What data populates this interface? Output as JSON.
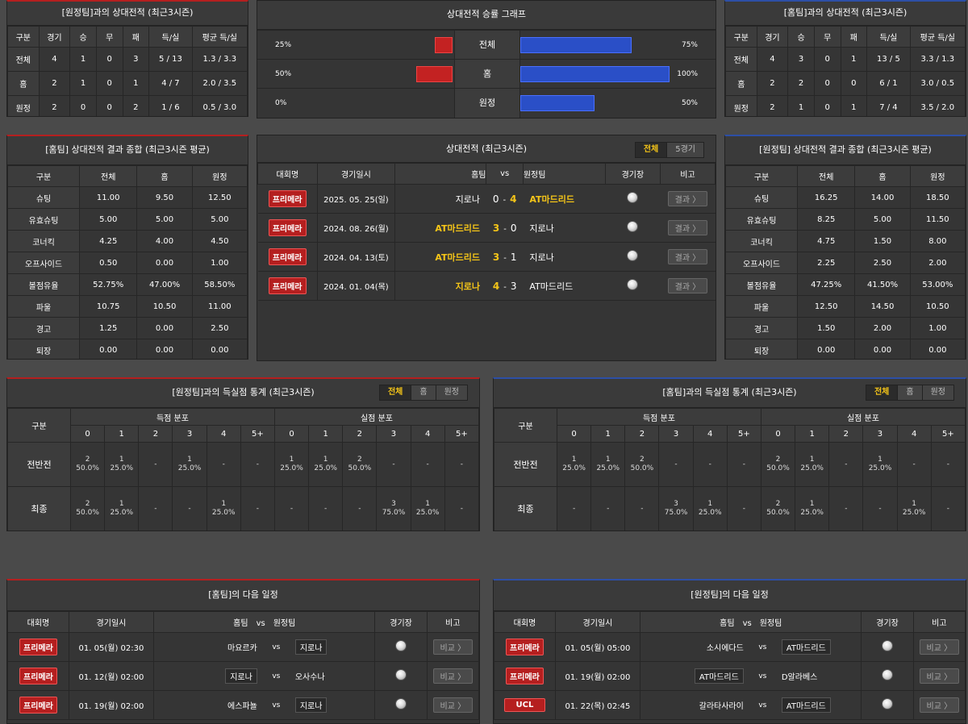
{
  "away_h2h": {
    "title": "[원정팀]과의 상대전적 (최근3시즌)",
    "headers": [
      "구분",
      "경기",
      "승",
      "무",
      "패",
      "득/실",
      "평균 득/실"
    ],
    "rows": [
      [
        "전체",
        "4",
        "1",
        "0",
        "3",
        "5 / 13",
        "1.3 / 3.3"
      ],
      [
        "홈",
        "2",
        "1",
        "0",
        "1",
        "4 / 7",
        "2.0 / 3.5"
      ],
      [
        "원정",
        "2",
        "0",
        "0",
        "2",
        "1 / 6",
        "0.5 / 3.0"
      ]
    ]
  },
  "graph": {
    "title": "상대전적 승률 그래프",
    "rows": [
      {
        "label": "전체",
        "left_pct": "25%",
        "right_pct": "75%",
        "left": 25,
        "right": 75
      },
      {
        "label": "홈",
        "left_pct": "50%",
        "right_pct": "100%",
        "left": 50,
        "right": 100
      },
      {
        "label": "원정",
        "left_pct": "0%",
        "right_pct": "50%",
        "left": 0,
        "right": 50
      }
    ]
  },
  "home_h2h": {
    "title": "[홈팀]과의 상대전적 (최근3시즌)",
    "headers": [
      "구분",
      "경기",
      "승",
      "무",
      "패",
      "득/실",
      "평균 득/실"
    ],
    "rows": [
      [
        "전체",
        "4",
        "3",
        "0",
        "1",
        "13 / 5",
        "3.3 / 1.3"
      ],
      [
        "홈",
        "2",
        "2",
        "0",
        "0",
        "6 / 1",
        "3.0 / 0.5"
      ],
      [
        "원정",
        "2",
        "1",
        "0",
        "1",
        "7 / 4",
        "3.5 / 2.0"
      ]
    ]
  },
  "home_stats": {
    "title": "[홈팀] 상대전적 결과 종합 (최근3시즌 평균)",
    "headers": [
      "구분",
      "전체",
      "홈",
      "원정"
    ],
    "rows": [
      [
        "슈팅",
        "11.00",
        "9.50",
        "12.50"
      ],
      [
        "유효슈팅",
        "5.00",
        "5.00",
        "5.00"
      ],
      [
        "코너킥",
        "4.25",
        "4.00",
        "4.50"
      ],
      [
        "오프사이드",
        "0.50",
        "0.00",
        "1.00"
      ],
      [
        "볼점유율",
        "52.75%",
        "47.00%",
        "58.50%"
      ],
      [
        "파울",
        "10.75",
        "10.50",
        "11.00"
      ],
      [
        "경고",
        "1.25",
        "0.00",
        "2.50"
      ],
      [
        "퇴장",
        "0.00",
        "0.00",
        "0.00"
      ]
    ]
  },
  "matches": {
    "title": "상대전적 (최근3시즌)",
    "tabs": [
      "전체",
      "5경기"
    ],
    "headers": {
      "league": "대회명",
      "date": "경기일시",
      "home": "홈팀",
      "vs": "vs",
      "away": "원정팀",
      "stadium": "경기장",
      "note": "비고"
    },
    "button": "결과 〉",
    "rows": [
      {
        "league": "프리메라",
        "date": "2025. 05. 25(일)",
        "home": "지로나",
        "hs": "0",
        "sep": "-",
        "as": "4",
        "away": "AT마드리드",
        "win": "away"
      },
      {
        "league": "프리메라",
        "date": "2024. 08. 26(월)",
        "home": "AT마드리드",
        "hs": "3",
        "sep": "-",
        "as": "0",
        "away": "지로나",
        "win": "home"
      },
      {
        "league": "프리메라",
        "date": "2024. 04. 13(토)",
        "home": "AT마드리드",
        "hs": "3",
        "sep": "-",
        "as": "1",
        "away": "지로나",
        "win": "home"
      },
      {
        "league": "프리메라",
        "date": "2024. 01. 04(목)",
        "home": "지로나",
        "hs": "4",
        "sep": "-",
        "as": "3",
        "away": "AT마드리드",
        "win": "home"
      }
    ]
  },
  "away_stats": {
    "title": "[원정팀] 상대전적 결과 종합 (최근3시즌 평균)",
    "headers": [
      "구분",
      "전체",
      "홈",
      "원정"
    ],
    "rows": [
      [
        "슈팅",
        "16.25",
        "14.00",
        "18.50"
      ],
      [
        "유효슈팅",
        "8.25",
        "5.00",
        "11.50"
      ],
      [
        "코너킥",
        "4.75",
        "1.50",
        "8.00"
      ],
      [
        "오프사이드",
        "2.25",
        "2.50",
        "2.00"
      ],
      [
        "볼점유율",
        "47.25%",
        "41.50%",
        "53.00%"
      ],
      [
        "파울",
        "12.50",
        "14.50",
        "10.50"
      ],
      [
        "경고",
        "1.50",
        "2.00",
        "1.00"
      ],
      [
        "퇴장",
        "0.00",
        "0.00",
        "0.00"
      ]
    ]
  },
  "away_goals": {
    "title": "[원정팀]과의 득실점 통계 (최근3시즌)",
    "tabs": [
      "전체",
      "홈",
      "원정"
    ],
    "col0": "구분",
    "group1": "득점 분포",
    "group2": "실점 분포",
    "cols": [
      "0",
      "1",
      "2",
      "3",
      "4",
      "5+"
    ],
    "rows": [
      {
        "label": "전반전",
        "cells": [
          [
            "2",
            "50.0%"
          ],
          [
            "1",
            "25.0%"
          ],
          [
            "-",
            ""
          ],
          [
            "1",
            "25.0%"
          ],
          [
            "-",
            ""
          ],
          [
            "-",
            ""
          ],
          [
            "1",
            "25.0%"
          ],
          [
            "1",
            "25.0%"
          ],
          [
            "2",
            "50.0%"
          ],
          [
            "-",
            ""
          ],
          [
            "-",
            ""
          ],
          [
            "-",
            ""
          ]
        ]
      },
      {
        "label": "최종",
        "cells": [
          [
            "2",
            "50.0%"
          ],
          [
            "1",
            "25.0%"
          ],
          [
            "-",
            ""
          ],
          [
            "-",
            ""
          ],
          [
            "1",
            "25.0%"
          ],
          [
            "-",
            ""
          ],
          [
            "-",
            ""
          ],
          [
            "-",
            ""
          ],
          [
            "-",
            ""
          ],
          [
            "3",
            "75.0%"
          ],
          [
            "1",
            "25.0%"
          ],
          [
            "-",
            ""
          ]
        ]
      }
    ]
  },
  "home_goals": {
    "title": "[홈팀]과의 득실점 통계 (최근3시즌)",
    "tabs": [
      "전체",
      "홈",
      "원정"
    ],
    "col0": "구분",
    "group1": "득점 분포",
    "group2": "실점 분포",
    "cols": [
      "0",
      "1",
      "2",
      "3",
      "4",
      "5+"
    ],
    "rows": [
      {
        "label": "전반전",
        "cells": [
          [
            "1",
            "25.0%"
          ],
          [
            "1",
            "25.0%"
          ],
          [
            "2",
            "50.0%"
          ],
          [
            "-",
            ""
          ],
          [
            "-",
            ""
          ],
          [
            "-",
            ""
          ],
          [
            "2",
            "50.0%"
          ],
          [
            "1",
            "25.0%"
          ],
          [
            "-",
            ""
          ],
          [
            "1",
            "25.0%"
          ],
          [
            "-",
            ""
          ],
          [
            "-",
            ""
          ]
        ]
      },
      {
        "label": "최종",
        "cells": [
          [
            "-",
            ""
          ],
          [
            "-",
            ""
          ],
          [
            "-",
            ""
          ],
          [
            "3",
            "75.0%"
          ],
          [
            "1",
            "25.0%"
          ],
          [
            "-",
            ""
          ],
          [
            "2",
            "50.0%"
          ],
          [
            "1",
            "25.0%"
          ],
          [
            "-",
            ""
          ],
          [
            "-",
            ""
          ],
          [
            "1",
            "25.0%"
          ],
          [
            "-",
            ""
          ]
        ]
      }
    ]
  },
  "home_next": {
    "title": "[홈팀]의 다음 일정",
    "headers": {
      "league": "대회명",
      "date": "경기일시",
      "home": "홈팀",
      "vs": "vs",
      "away": "원정팀",
      "stadium": "경기장",
      "note": "비고"
    },
    "button": "비교 〉",
    "rows": [
      {
        "league": "프리메라",
        "date": "01. 05(월) 02:30",
        "home": "마요르카",
        "away": "지로나",
        "mark": "away"
      },
      {
        "league": "프리메라",
        "date": "01. 12(월) 02:00",
        "home": "지로나",
        "away": "오사수나",
        "mark": "home"
      },
      {
        "league": "프리메라",
        "date": "01. 19(월) 02:00",
        "home": "에스파뇰",
        "away": "지로나",
        "mark": "away"
      }
    ]
  },
  "away_next": {
    "title": "[원정팀]의 다음 일정",
    "headers": {
      "league": "대회명",
      "date": "경기일시",
      "home": "홈팀",
      "vs": "vs",
      "away": "원정팀",
      "stadium": "경기장",
      "note": "비고"
    },
    "button": "비교 〉",
    "rows": [
      {
        "league": "프리메라",
        "date": "01. 05(월) 05:00",
        "home": "소시에다드",
        "away": "AT마드리드",
        "mark": "away"
      },
      {
        "league": "프리메라",
        "date": "01. 19(월) 02:00",
        "home": "AT마드리드",
        "away": "D알라베스",
        "mark": "home"
      },
      {
        "league": "UCL",
        "date": "01. 22(목) 02:45",
        "home": "갈라타사라이",
        "away": "AT마드리드",
        "mark": "away"
      }
    ]
  }
}
